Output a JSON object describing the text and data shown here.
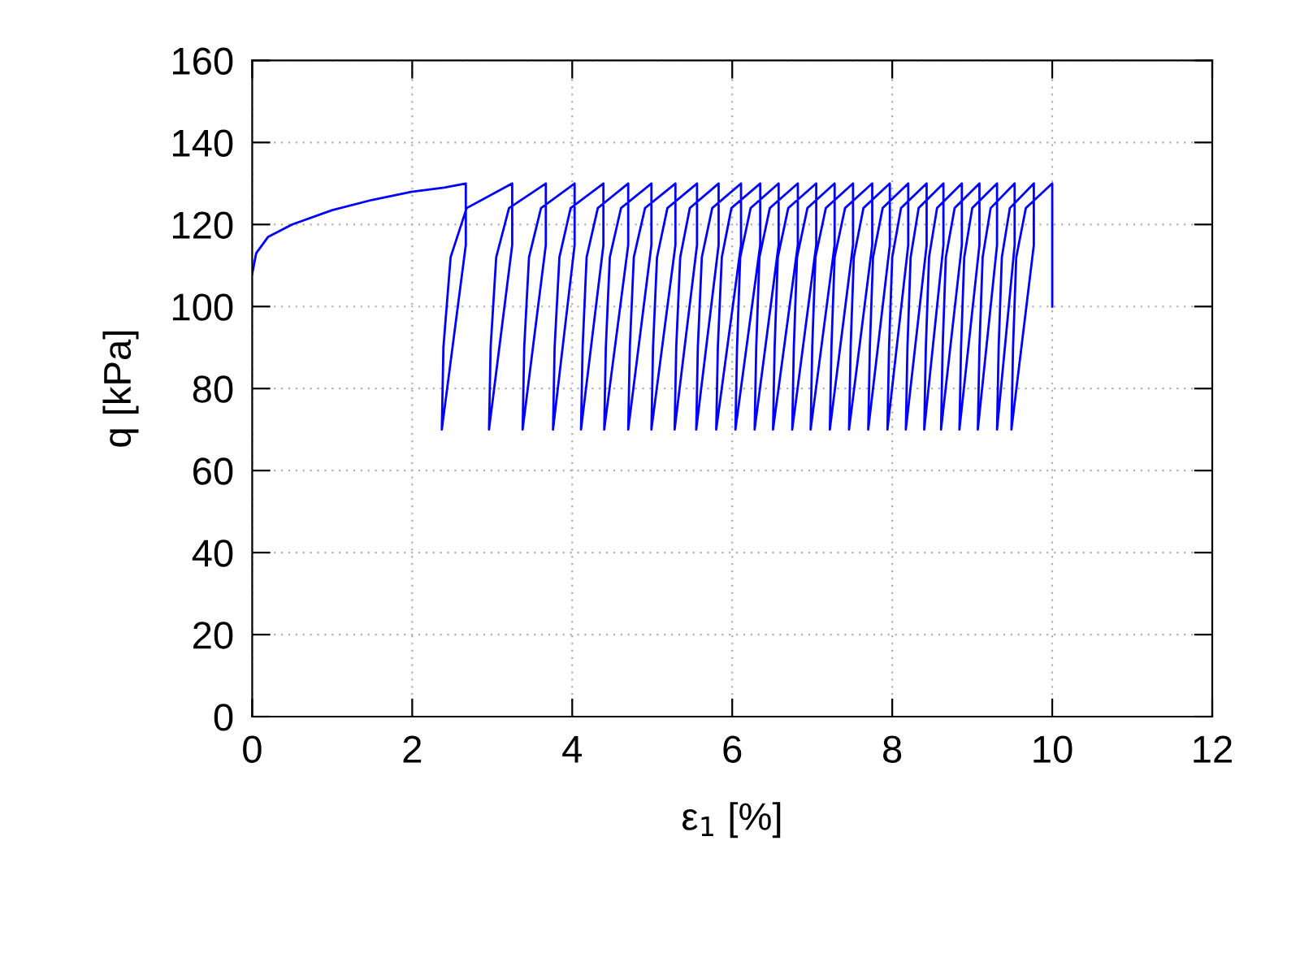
{
  "chart_data": {
    "type": "line",
    "xlabel": "ε$_{1}$ [%]",
    "ylabel": "q [kPa]",
    "xlim": [
      0,
      12
    ],
    "xticks": [
      0,
      2,
      4,
      6,
      8,
      10,
      12
    ],
    "ylim": [
      0,
      160
    ],
    "yticks": [
      0,
      20,
      40,
      60,
      80,
      100,
      120,
      140,
      160
    ],
    "grid": true,
    "marker": "none",
    "line_style": "solid",
    "series": [
      {
        "color": "#0000ff",
        "x": [
          0,
          0.05,
          0.2,
          0.5,
          1,
          1.5,
          2,
          2.4,
          2.67,
          2.67,
          2.37,
          2.39,
          2.48,
          2.68,
          3.25,
          3.25,
          2.96,
          2.98,
          3.05,
          3.21,
          3.67,
          3.67,
          3.38,
          3.4,
          3.46,
          3.61,
          4.03,
          4.03,
          3.76,
          3.78,
          3.84,
          3.98,
          4.39,
          4.39,
          4.11,
          4.13,
          4.18,
          4.32,
          4.7,
          4.7,
          4.4,
          4.42,
          4.47,
          4.61,
          4.99,
          4.99,
          4.7,
          4.72,
          4.77,
          4.91,
          5.29,
          5.29,
          4.99,
          5.01,
          5.06,
          5.19,
          5.56,
          5.56,
          5.28,
          5.3,
          5.35,
          5.47,
          5.83,
          5.83,
          5.55,
          5.57,
          5.62,
          5.75,
          6.11,
          6.11,
          5.8,
          5.82,
          5.87,
          5.99,
          6.35,
          6.35,
          6.04,
          6.06,
          6.1,
          6.23,
          6.58,
          6.58,
          6.28,
          6.3,
          6.34,
          6.47,
          6.82,
          6.82,
          6.51,
          6.53,
          6.57,
          6.7,
          7.05,
          7.05,
          6.75,
          6.77,
          6.81,
          6.94,
          7.28,
          7.28,
          6.98,
          7.0,
          7.04,
          7.17,
          7.51,
          7.51,
          7.22,
          7.24,
          7.28,
          7.41,
          7.75,
          7.75,
          7.46,
          7.48,
          7.52,
          7.64,
          7.97,
          7.97,
          7.7,
          7.72,
          7.76,
          7.88,
          8.2,
          8.2,
          7.94,
          7.96,
          8.0,
          8.11,
          8.43,
          8.43,
          8.17,
          8.19,
          8.23,
          8.33,
          8.64,
          8.64,
          8.4,
          8.42,
          8.46,
          8.56,
          8.87,
          8.87,
          8.61,
          8.63,
          8.67,
          8.78,
          9.09,
          9.09,
          8.84,
          8.86,
          8.9,
          9.0,
          9.31,
          9.31,
          9.07,
          9.09,
          9.13,
          9.23,
          9.53,
          9.53,
          9.31,
          9.33,
          9.37,
          9.47,
          9.77,
          9.77,
          9.49,
          9.51,
          9.55,
          9.67,
          10.0,
          10.0,
          10.0
        ],
        "values": [
          108,
          113,
          117,
          120,
          123.5,
          126,
          128,
          129,
          130,
          115,
          70,
          90,
          112,
          124,
          130,
          115,
          70,
          90,
          112,
          124,
          130,
          115,
          70,
          90,
          112,
          124,
          130,
          115,
          70,
          90,
          112,
          124,
          130,
          115,
          70,
          90,
          112,
          124,
          130,
          115,
          70,
          90,
          112,
          124,
          130,
          115,
          70,
          90,
          112,
          124,
          130,
          115,
          70,
          90,
          112,
          124,
          130,
          115,
          70,
          90,
          112,
          124,
          130,
          115,
          70,
          90,
          112,
          124,
          130,
          115,
          70,
          90,
          112,
          124,
          130,
          115,
          70,
          90,
          112,
          124,
          130,
          115,
          70,
          90,
          112,
          124,
          130,
          115,
          70,
          90,
          112,
          124,
          130,
          115,
          70,
          90,
          112,
          124,
          130,
          115,
          70,
          90,
          112,
          124,
          130,
          115,
          70,
          90,
          112,
          124,
          130,
          115,
          70,
          90,
          112,
          124,
          130,
          115,
          70,
          90,
          112,
          124,
          130,
          115,
          70,
          90,
          112,
          124,
          130,
          115,
          70,
          90,
          112,
          124,
          130,
          115,
          70,
          90,
          112,
          124,
          130,
          115,
          70,
          90,
          112,
          124,
          130,
          115,
          70,
          90,
          112,
          124,
          130,
          115,
          70,
          90,
          112,
          124,
          130,
          115,
          70,
          90,
          112,
          124,
          130,
          115,
          70,
          90,
          112,
          124,
          130,
          115,
          100
        ]
      }
    ]
  }
}
